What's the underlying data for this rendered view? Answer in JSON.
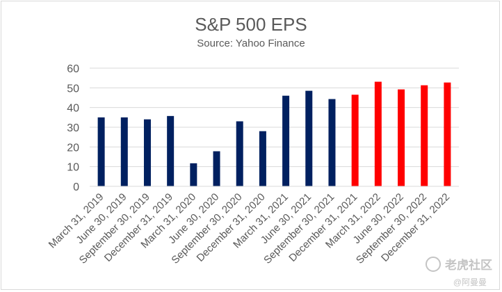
{
  "chart_data": {
    "type": "bar",
    "title": "S&P 500 EPS",
    "subtitle": "Source: Yahoo Finance",
    "xlabel": "",
    "ylabel": "",
    "ylim": [
      0,
      60
    ],
    "yticks": [
      0,
      10,
      20,
      30,
      40,
      50,
      60
    ],
    "grid": true,
    "categories": [
      "March 31, 2019",
      "June 30, 2019",
      "September 30, 2019",
      "December 31, 2019",
      "March 31, 2020",
      "June 30, 2020",
      "September 30, 2020",
      "December 31, 2020",
      "March 31, 2021",
      "June 30, 2021",
      "September 30, 2021",
      "December 31, 2021",
      "March 31, 2022",
      "June 30, 2022",
      "September 30, 2022",
      "December 31, 2022"
    ],
    "values": [
      35,
      35,
      34,
      35.7,
      11.7,
      17.8,
      33,
      28,
      46,
      48.5,
      44.3,
      46.5,
      53.1,
      49.2,
      51.3,
      52.7
    ],
    "colors": {
      "actual": "#002060",
      "estimate": "#ff0000",
      "grid": "#d9d9d9",
      "text": "#595959"
    },
    "bar_color_groups": [
      "actual",
      "actual",
      "actual",
      "actual",
      "actual",
      "actual",
      "actual",
      "actual",
      "actual",
      "actual",
      "actual",
      "estimate",
      "estimate",
      "estimate",
      "estimate",
      "estimate"
    ]
  },
  "watermark": {
    "brand": "老虎社区",
    "handle": "@阿曼曼"
  }
}
